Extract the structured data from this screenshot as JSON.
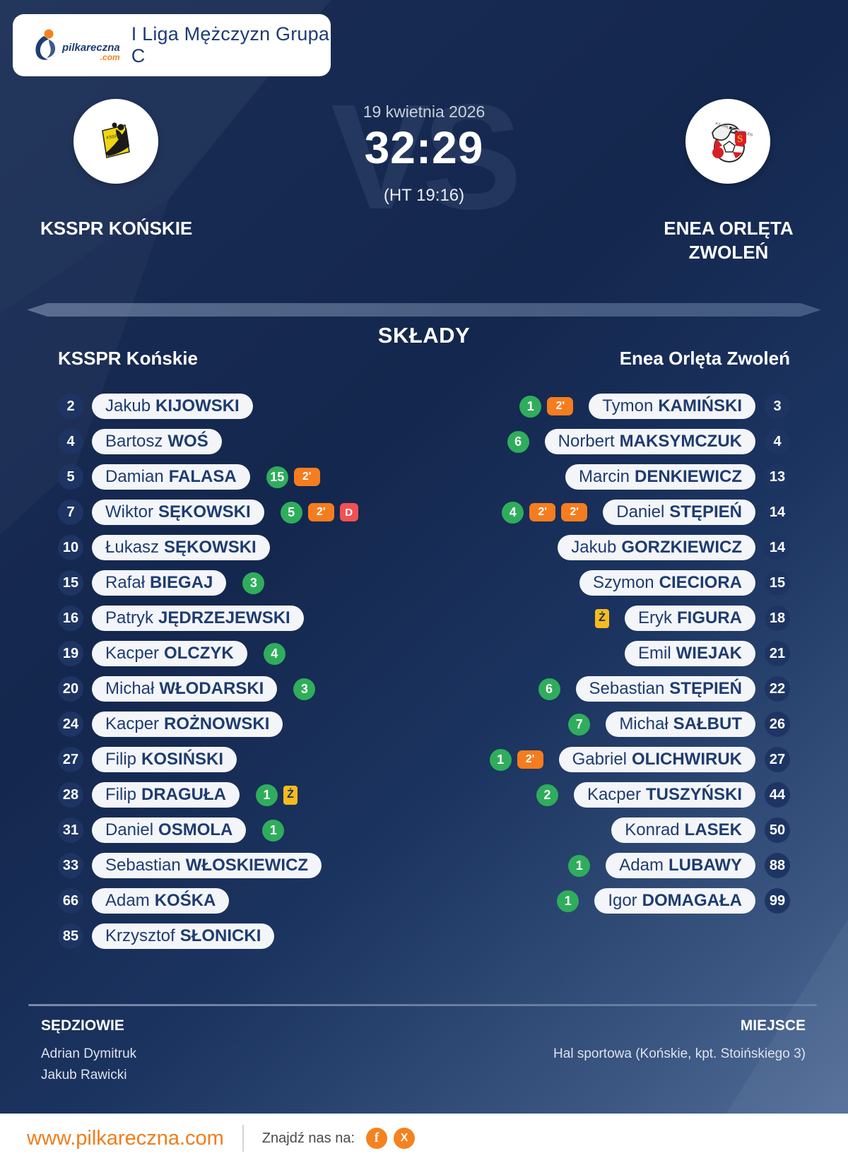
{
  "header": {
    "league": "I Liga Mężczyzn Grupa C",
    "logo_name": "pilkareczna",
    "logo_tld": ".com"
  },
  "match": {
    "date": "19 kwietnia 2026",
    "score": "32:29",
    "halftime": "(HT 19:16)",
    "vs_watermark": "VS",
    "home": {
      "name": "KSSPR KOŃSKIE"
    },
    "away": {
      "name_line1": "ENEA ORLĘTA",
      "name_line2": "ZWOLEŃ"
    }
  },
  "lineups": {
    "title": "SKŁADY",
    "home_header": "KSSPR Końskie",
    "away_header": "Enea Orlęta Zwoleń",
    "home_players": [
      {
        "number": "2",
        "first": "Jakub",
        "last": "KIJOWSKI",
        "badges": []
      },
      {
        "number": "4",
        "first": "Bartosz",
        "last": "WOŚ",
        "badges": []
      },
      {
        "number": "5",
        "first": "Damian",
        "last": "FALASA",
        "badges": [
          {
            "type": "goals",
            "value": "15"
          },
          {
            "type": "suspension",
            "value": "2'"
          }
        ]
      },
      {
        "number": "7",
        "first": "Wiktor",
        "last": "SĘKOWSKI",
        "badges": [
          {
            "type": "goals",
            "value": "5"
          },
          {
            "type": "suspension",
            "value": "2'"
          },
          {
            "type": "disqualification",
            "value": "D"
          }
        ]
      },
      {
        "number": "10",
        "first": "Łukasz",
        "last": "SĘKOWSKI",
        "badges": []
      },
      {
        "number": "15",
        "first": "Rafał",
        "last": "BIEGAJ",
        "badges": [
          {
            "type": "goals",
            "value": "3"
          }
        ]
      },
      {
        "number": "16",
        "first": "Patryk",
        "last": "JĘDRZEJEWSKI",
        "badges": []
      },
      {
        "number": "19",
        "first": "Kacper",
        "last": "OLCZYK",
        "badges": [
          {
            "type": "goals",
            "value": "4"
          }
        ]
      },
      {
        "number": "20",
        "first": "Michał",
        "last": "WŁODARSKI",
        "badges": [
          {
            "type": "goals",
            "value": "3"
          }
        ]
      },
      {
        "number": "24",
        "first": "Kacper",
        "last": "ROŻNOWSKI",
        "badges": []
      },
      {
        "number": "27",
        "first": "Filip",
        "last": "KOSIŃSKI",
        "badges": []
      },
      {
        "number": "28",
        "first": "Filip",
        "last": "DRAGUŁA",
        "badges": [
          {
            "type": "goals",
            "value": "1"
          },
          {
            "type": "yellow-card",
            "value": "Ż"
          }
        ]
      },
      {
        "number": "31",
        "first": "Daniel",
        "last": "OSMOLA",
        "badges": [
          {
            "type": "goals",
            "value": "1"
          }
        ]
      },
      {
        "number": "33",
        "first": "Sebastian",
        "last": "WŁOSKIEWICZ",
        "badges": []
      },
      {
        "number": "66",
        "first": "Adam",
        "last": "KOŚKA",
        "badges": []
      },
      {
        "number": "85",
        "first": "Krzysztof",
        "last": "SŁONICKI",
        "badges": []
      }
    ],
    "away_players": [
      {
        "number": "3",
        "first": "Tymon",
        "last": "KAMIŃSKI",
        "badges": [
          {
            "type": "goals",
            "value": "1"
          },
          {
            "type": "suspension",
            "value": "2'"
          }
        ]
      },
      {
        "number": "4",
        "first": "Norbert",
        "last": "MAKSYMCZUK",
        "badges": [
          {
            "type": "goals",
            "value": "6"
          }
        ]
      },
      {
        "number": "13",
        "first": "Marcin",
        "last": "DENKIEWICZ",
        "badges": []
      },
      {
        "number": "14",
        "first": "Daniel",
        "last": "STĘPIEŃ",
        "badges": [
          {
            "type": "goals",
            "value": "4"
          },
          {
            "type": "suspension",
            "value": "2'"
          },
          {
            "type": "suspension",
            "value": "2'"
          }
        ]
      },
      {
        "number": "14",
        "first": "Jakub",
        "last": "GORZKIEWICZ",
        "badges": []
      },
      {
        "number": "15",
        "first": "Szymon",
        "last": "CIECIORA",
        "badges": []
      },
      {
        "number": "18",
        "first": "Eryk",
        "last": "FIGURA",
        "badges": [
          {
            "type": "yellow-card",
            "value": "Ż"
          }
        ]
      },
      {
        "number": "21",
        "first": "Emil",
        "last": "WIEJAK",
        "badges": []
      },
      {
        "number": "22",
        "first": "Sebastian",
        "last": "STĘPIEŃ",
        "badges": [
          {
            "type": "goals",
            "value": "6"
          }
        ]
      },
      {
        "number": "26",
        "first": "Michał",
        "last": "SAŁBUT",
        "badges": [
          {
            "type": "goals",
            "value": "7"
          }
        ]
      },
      {
        "number": "27",
        "first": "Gabriel",
        "last": "OLICHWIRUK",
        "badges": [
          {
            "type": "goals",
            "value": "1"
          },
          {
            "type": "suspension",
            "value": "2'"
          }
        ]
      },
      {
        "number": "44",
        "first": "Kacper",
        "last": "TUSZYŃSKI",
        "badges": [
          {
            "type": "goals",
            "value": "2"
          }
        ]
      },
      {
        "number": "50",
        "first": "Konrad",
        "last": "LASEK",
        "badges": []
      },
      {
        "number": "88",
        "first": "Adam",
        "last": "LUBAWY",
        "badges": [
          {
            "type": "goals",
            "value": "1"
          }
        ]
      },
      {
        "number": "99",
        "first": "Igor",
        "last": "DOMAGAŁA",
        "badges": [
          {
            "type": "goals",
            "value": "1"
          }
        ]
      }
    ]
  },
  "officials": {
    "referees_label": "SĘDZIOWIE",
    "referees": [
      "Adrian Dymitruk",
      "Jakub Rawicki"
    ],
    "venue_label": "MIEJSCE",
    "venue": "Hal sportowa (Końskie, kpt. Stoińskiego 3)"
  },
  "footer": {
    "website": "www.pilkareczna.com",
    "social_label": "Znajdź nas na:",
    "facebook_glyph": "f",
    "x_glyph": "X"
  },
  "colors": {
    "background_dark": "#14274e",
    "background_light": "#55719d",
    "accent_orange": "#f5821f",
    "goal_green": "#2fad5c",
    "suspension_orange": "#f57d1f",
    "disqualification_red": "#f05252",
    "yellow_card": "#f6bb1d",
    "pill_bg": "#f3f5f9",
    "pill_text": "#1e3c70"
  }
}
